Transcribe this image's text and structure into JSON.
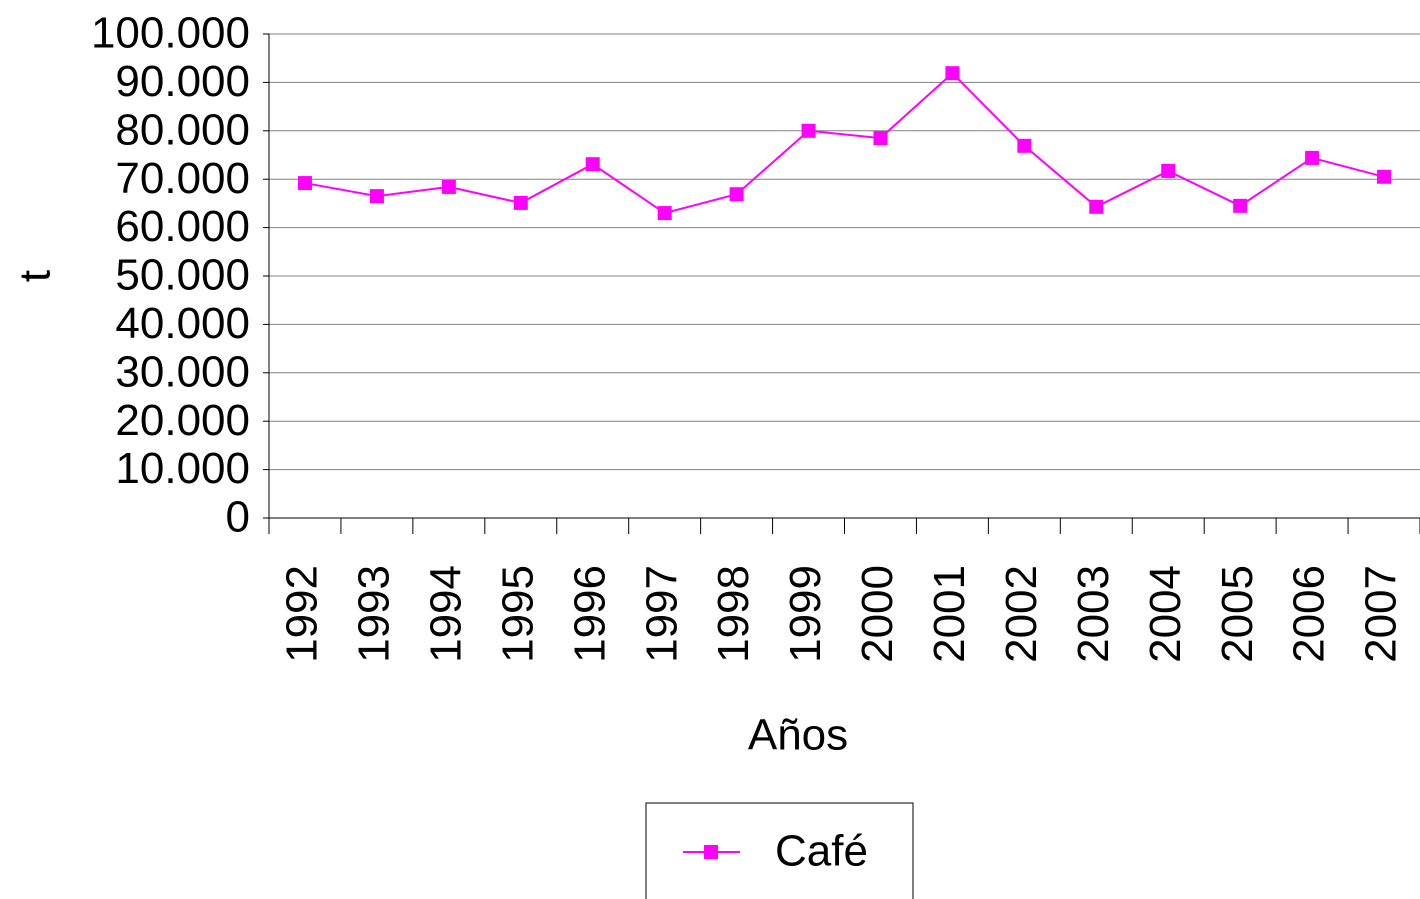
{
  "chart_data": {
    "type": "line",
    "x_label": "Años",
    "y_label": "t",
    "categories": [
      "1992",
      "1993",
      "1994",
      "1995",
      "1996",
      "1997",
      "1998",
      "1999",
      "2000",
      "2001",
      "2002",
      "2003",
      "2004",
      "2005",
      "2006",
      "2007"
    ],
    "series": [
      {
        "name": "Café",
        "color": "#ff00ff",
        "values": [
          69200,
          66500,
          68400,
          65100,
          73100,
          63000,
          66900,
          80000,
          78500,
          91900,
          76900,
          64300,
          71700,
          64500,
          74400,
          70500
        ]
      }
    ],
    "ylim": [
      0,
      100000
    ],
    "yticks": [
      0,
      {
        "value": 10000,
        "label": "10.000"
      },
      {
        "value": 20000,
        "label": "20.000"
      },
      {
        "value": 30000,
        "label": "30.000"
      },
      {
        "value": 40000,
        "label": "40.000"
      },
      {
        "value": 50000,
        "label": "50.000"
      },
      {
        "value": 60000,
        "label": "60.000"
      },
      {
        "value": 70000,
        "label": "70.000"
      },
      {
        "value": 80000,
        "label": "80.000"
      },
      {
        "value": 90000,
        "label": "90.000"
      },
      {
        "value": 100000,
        "label": "100.000"
      }
    ],
    "grid": true,
    "legend": "bottom"
  }
}
